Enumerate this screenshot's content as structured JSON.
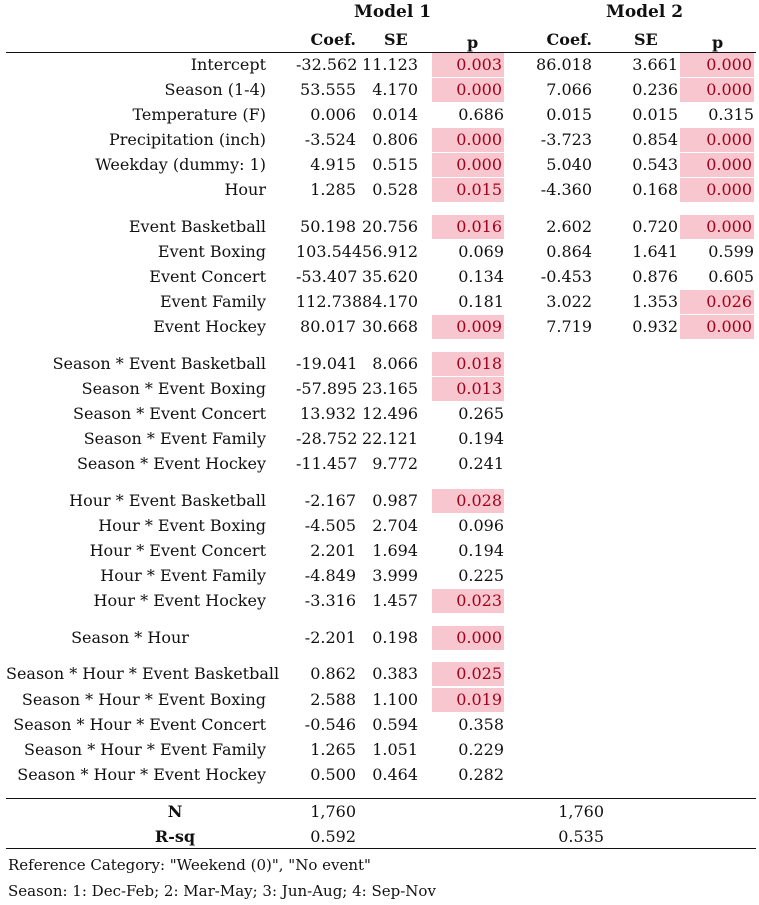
{
  "models": [
    {
      "title": "Model 1",
      "headers": [
        "Coef.",
        "SE",
        "p"
      ]
    },
    {
      "title": "Model 2",
      "headers": [
        "Coef.",
        "SE",
        "p"
      ]
    }
  ],
  "rows": [
    {
      "label": "Intercept",
      "m1": [
        "-32.562",
        "11.123",
        "0.003"
      ],
      "m1_sig": true,
      "m2": [
        "86.018",
        "3.661",
        "0.000"
      ],
      "m2_sig": true
    },
    {
      "label": "Season (1-4)",
      "m1": [
        "53.555",
        "4.170",
        "0.000"
      ],
      "m1_sig": true,
      "m2": [
        "7.066",
        "0.236",
        "0.000"
      ],
      "m2_sig": true
    },
    {
      "label": "Temperature (F)",
      "m1": [
        "0.006",
        "0.014",
        "0.686"
      ],
      "m1_sig": false,
      "m2": [
        "0.015",
        "0.015",
        "0.315"
      ],
      "m2_sig": false
    },
    {
      "label": "Precipitation (inch)",
      "m1": [
        "-3.524",
        "0.806",
        "0.000"
      ],
      "m1_sig": true,
      "m2": [
        "-3.723",
        "0.854",
        "0.000"
      ],
      "m2_sig": true
    },
    {
      "label": "Weekday (dummy: 1)",
      "m1": [
        "4.915",
        "0.515",
        "0.000"
      ],
      "m1_sig": true,
      "m2": [
        "5.040",
        "0.543",
        "0.000"
      ],
      "m2_sig": true
    },
    {
      "label": "Hour",
      "m1": [
        "1.285",
        "0.528",
        "0.015"
      ],
      "m1_sig": true,
      "m2": [
        "-4.360",
        "0.168",
        "0.000"
      ],
      "m2_sig": true
    },
    {
      "label": "Event Basketball",
      "m1": [
        "50.198",
        "20.756",
        "0.016"
      ],
      "m1_sig": true,
      "m2": [
        "2.602",
        "0.720",
        "0.000"
      ],
      "m2_sig": true
    },
    {
      "label": "Event Boxing",
      "m1": [
        "103.544",
        "56.912",
        "0.069"
      ],
      "m1_sig": false,
      "m2": [
        "0.864",
        "1.641",
        "0.599"
      ],
      "m2_sig": false
    },
    {
      "label": "Event Concert",
      "m1": [
        "-53.407",
        "35.620",
        "0.134"
      ],
      "m1_sig": false,
      "m2": [
        "-0.453",
        "0.876",
        "0.605"
      ],
      "m2_sig": false
    },
    {
      "label": "Event Family",
      "m1": [
        "112.738",
        "84.170",
        "0.181"
      ],
      "m1_sig": false,
      "m2": [
        "3.022",
        "1.353",
        "0.026"
      ],
      "m2_sig": true
    },
    {
      "label": "Event Hockey",
      "m1": [
        "80.017",
        "30.668",
        "0.009"
      ],
      "m1_sig": true,
      "m2": [
        "7.719",
        "0.932",
        "0.000"
      ],
      "m2_sig": true
    },
    {
      "label": "Season * Event Basketball",
      "m1": [
        "-19.041",
        "8.066",
        "0.018"
      ],
      "m1_sig": true
    },
    {
      "label": "Season * Event Boxing",
      "m1": [
        "-57.895",
        "23.165",
        "0.013"
      ],
      "m1_sig": true
    },
    {
      "label": "Season * Event Concert",
      "m1": [
        "13.932",
        "12.496",
        "0.265"
      ],
      "m1_sig": false
    },
    {
      "label": "Season * Event Family",
      "m1": [
        "-28.752",
        "22.121",
        "0.194"
      ],
      "m1_sig": false
    },
    {
      "label": "Season * Event Hockey",
      "m1": [
        "-11.457",
        "9.772",
        "0.241"
      ],
      "m1_sig": false
    },
    {
      "label": "Hour * Event Basketball",
      "m1": [
        "-2.167",
        "0.987",
        "0.028"
      ],
      "m1_sig": true
    },
    {
      "label": "Hour * Event Boxing",
      "m1": [
        "-4.505",
        "2.704",
        "0.096"
      ],
      "m1_sig": false
    },
    {
      "label": "Hour * Event Concert",
      "m1": [
        "2.201",
        "1.694",
        "0.194"
      ],
      "m1_sig": false
    },
    {
      "label": "Hour * Event Family",
      "m1": [
        "-4.849",
        "3.999",
        "0.225"
      ],
      "m1_sig": false
    },
    {
      "label": "Hour * Event Hockey",
      "m1": [
        "-3.316",
        "1.457",
        "0.023"
      ],
      "m1_sig": true
    },
    {
      "label": "Season * Hour",
      "m1": [
        "-2.201",
        "0.198",
        "0.000"
      ],
      "m1_sig": true
    },
    {
      "label": "Season * Hour * Event Basketball",
      "m1": [
        "0.862",
        "0.383",
        "0.025"
      ],
      "m1_sig": true
    },
    {
      "label": "Season * Hour * Event Boxing",
      "m1": [
        "2.588",
        "1.100",
        "0.019"
      ],
      "m1_sig": true
    },
    {
      "label": "Season * Hour * Event Concert",
      "m1": [
        "-0.546",
        "0.594",
        "0.358"
      ],
      "m1_sig": false
    },
    {
      "label": "Season * Hour * Event Family",
      "m1": [
        "1.265",
        "1.051",
        "0.229"
      ],
      "m1_sig": false
    },
    {
      "label": "Season * Hour * Event Hockey",
      "m1": [
        "0.500",
        "0.464",
        "0.282"
      ],
      "m1_sig": false
    }
  ],
  "stats": [
    {
      "label": "N",
      "m1": "1,760",
      "m2": "1,760"
    },
    {
      "label": "R-sq",
      "m1": "0.592",
      "m2": "0.535"
    }
  ],
  "footnotes": [
    "Reference Category: \"Weekend (0)\", \"No event\"",
    "Season: 1: Dec-Feb; 2: Mar-May; 3: Jun-Aug; 4: Sep-Nov"
  ],
  "colors": {
    "sig_bg": "#f7c6ce",
    "sig_text": "#a3001b"
  }
}
